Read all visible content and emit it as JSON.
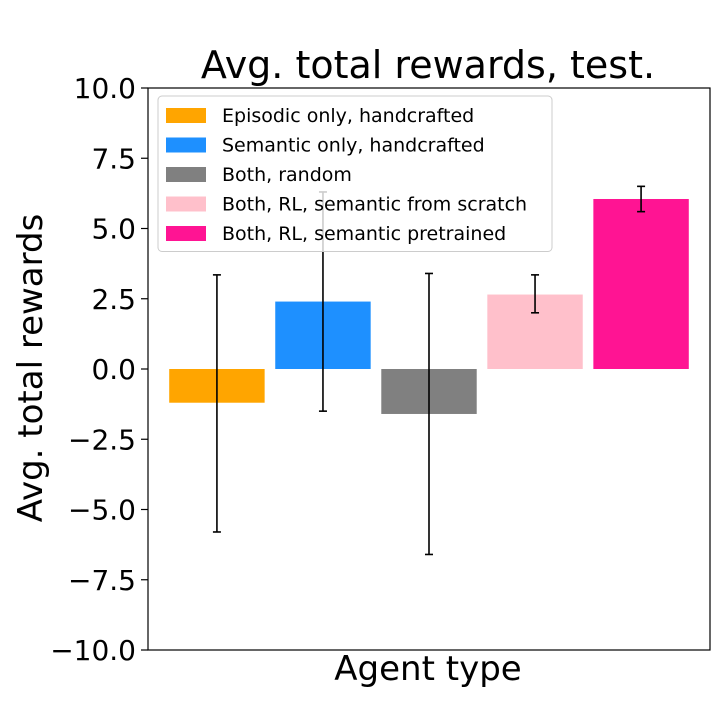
{
  "chart_data": {
    "type": "bar",
    "title": "Avg. total rewards, test.",
    "xlabel": "Agent type",
    "ylabel": "Avg. total rewards",
    "ylim": [
      -10,
      10
    ],
    "yticks": [
      10,
      7.5,
      5,
      2.5,
      0,
      -2.5,
      -5,
      -7.5,
      -10
    ],
    "ytick_labels": [
      "10.0",
      "7.5",
      "5.0",
      "2.5",
      "0.0",
      "−2.5",
      "−5.0",
      "−7.5",
      "−10.0"
    ],
    "grid": false,
    "legend_position": "top-left",
    "series": [
      {
        "name": "Episodic only, handcrafted",
        "value": -1.2,
        "err_low": -5.8,
        "err_high": 3.35,
        "color": "#FFA500"
      },
      {
        "name": "Semantic only, handcrafted",
        "value": 2.4,
        "err_low": -1.5,
        "err_high": 6.3,
        "color": "#1E90FF"
      },
      {
        "name": "Both, random",
        "value": -1.6,
        "err_low": -6.6,
        "err_high": 3.4,
        "color": "#808080"
      },
      {
        "name": "Both, RL, semantic from scratch",
        "value": 2.65,
        "err_low": 2.0,
        "err_high": 3.35,
        "color": "#FFC0CB"
      },
      {
        "name": "Both, RL, semantic pretrained",
        "value": 6.05,
        "err_low": 5.6,
        "err_high": 6.5,
        "color": "#FF1493"
      }
    ]
  }
}
